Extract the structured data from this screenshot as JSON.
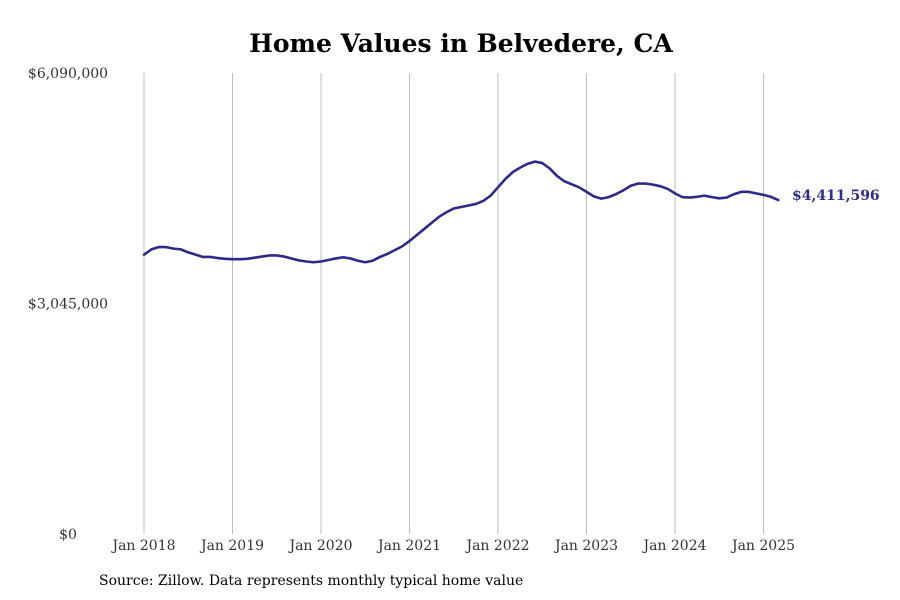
{
  "chart_data": {
    "type": "line",
    "title": "Home Values in Belvedere, CA",
    "xlabel": "",
    "ylabel": "",
    "ylim": [
      0,
      6090000
    ],
    "y_ticks": [
      {
        "value": 0,
        "label": "$0"
      },
      {
        "value": 3045000,
        "label": "$3,045,000"
      },
      {
        "value": 6090000,
        "label": "$6,090,000"
      }
    ],
    "x_ticks": [
      {
        "value": "2018-01",
        "label": "Jan 2018"
      },
      {
        "value": "2019-01",
        "label": "Jan 2019"
      },
      {
        "value": "2020-01",
        "label": "Jan 2020"
      },
      {
        "value": "2021-01",
        "label": "Jan 2021"
      },
      {
        "value": "2022-01",
        "label": "Jan 2022"
      },
      {
        "value": "2023-01",
        "label": "Jan 2023"
      },
      {
        "value": "2024-01",
        "label": "Jan 2024"
      },
      {
        "value": "2025-01",
        "label": "Jan 2025"
      }
    ],
    "grid": "vertical",
    "series": [
      {
        "color": "#2e2a87",
        "end_label": "$4,411,596",
        "points": [
          [
            "2018-01",
            3690000
          ],
          [
            "2018-02",
            3760000
          ],
          [
            "2018-03",
            3790000
          ],
          [
            "2018-04",
            3790000
          ],
          [
            "2018-05",
            3770000
          ],
          [
            "2018-06",
            3760000
          ],
          [
            "2018-07",
            3720000
          ],
          [
            "2018-08",
            3690000
          ],
          [
            "2018-09",
            3660000
          ],
          [
            "2018-10",
            3660000
          ],
          [
            "2018-11",
            3645000
          ],
          [
            "2018-12",
            3635000
          ],
          [
            "2019-01",
            3630000
          ],
          [
            "2019-02",
            3630000
          ],
          [
            "2019-03",
            3635000
          ],
          [
            "2019-04",
            3650000
          ],
          [
            "2019-05",
            3665000
          ],
          [
            "2019-06",
            3680000
          ],
          [
            "2019-07",
            3680000
          ],
          [
            "2019-08",
            3665000
          ],
          [
            "2019-09",
            3640000
          ],
          [
            "2019-10",
            3615000
          ],
          [
            "2019-11",
            3600000
          ],
          [
            "2019-12",
            3590000
          ],
          [
            "2020-01",
            3600000
          ],
          [
            "2020-02",
            3620000
          ],
          [
            "2020-03",
            3640000
          ],
          [
            "2020-04",
            3655000
          ],
          [
            "2020-05",
            3640000
          ],
          [
            "2020-06",
            3610000
          ],
          [
            "2020-07",
            3590000
          ],
          [
            "2020-08",
            3610000
          ],
          [
            "2020-09",
            3660000
          ],
          [
            "2020-10",
            3700000
          ],
          [
            "2020-11",
            3750000
          ],
          [
            "2020-12",
            3800000
          ],
          [
            "2021-01",
            3870000
          ],
          [
            "2021-02",
            3950000
          ],
          [
            "2021-03",
            4030000
          ],
          [
            "2021-04",
            4110000
          ],
          [
            "2021-05",
            4190000
          ],
          [
            "2021-06",
            4250000
          ],
          [
            "2021-07",
            4300000
          ],
          [
            "2021-08",
            4320000
          ],
          [
            "2021-09",
            4340000
          ],
          [
            "2021-10",
            4360000
          ],
          [
            "2021-11",
            4400000
          ],
          [
            "2021-12",
            4470000
          ],
          [
            "2022-01",
            4580000
          ],
          [
            "2022-02",
            4690000
          ],
          [
            "2022-03",
            4780000
          ],
          [
            "2022-04",
            4840000
          ],
          [
            "2022-05",
            4890000
          ],
          [
            "2022-06",
            4920000
          ],
          [
            "2022-07",
            4900000
          ],
          [
            "2022-08",
            4830000
          ],
          [
            "2022-09",
            4730000
          ],
          [
            "2022-10",
            4660000
          ],
          [
            "2022-11",
            4620000
          ],
          [
            "2022-12",
            4580000
          ],
          [
            "2023-01",
            4520000
          ],
          [
            "2023-02",
            4460000
          ],
          [
            "2023-03",
            4430000
          ],
          [
            "2023-04",
            4450000
          ],
          [
            "2023-05",
            4490000
          ],
          [
            "2023-06",
            4540000
          ],
          [
            "2023-07",
            4600000
          ],
          [
            "2023-08",
            4630000
          ],
          [
            "2023-09",
            4630000
          ],
          [
            "2023-10",
            4615000
          ],
          [
            "2023-11",
            4595000
          ],
          [
            "2023-12",
            4560000
          ],
          [
            "2024-01",
            4500000
          ],
          [
            "2024-02",
            4450000
          ],
          [
            "2024-03",
            4445000
          ],
          [
            "2024-04",
            4455000
          ],
          [
            "2024-05",
            4470000
          ],
          [
            "2024-06",
            4450000
          ],
          [
            "2024-07",
            4435000
          ],
          [
            "2024-08",
            4445000
          ],
          [
            "2024-09",
            4490000
          ],
          [
            "2024-10",
            4520000
          ],
          [
            "2024-11",
            4520000
          ],
          [
            "2024-12",
            4500000
          ],
          [
            "2025-01",
            4480000
          ],
          [
            "2025-02",
            4455000
          ],
          [
            "2025-03",
            4411596
          ]
        ]
      }
    ]
  },
  "footer": {
    "source": "Source: Zillow. Data represents monthly typical home value"
  }
}
